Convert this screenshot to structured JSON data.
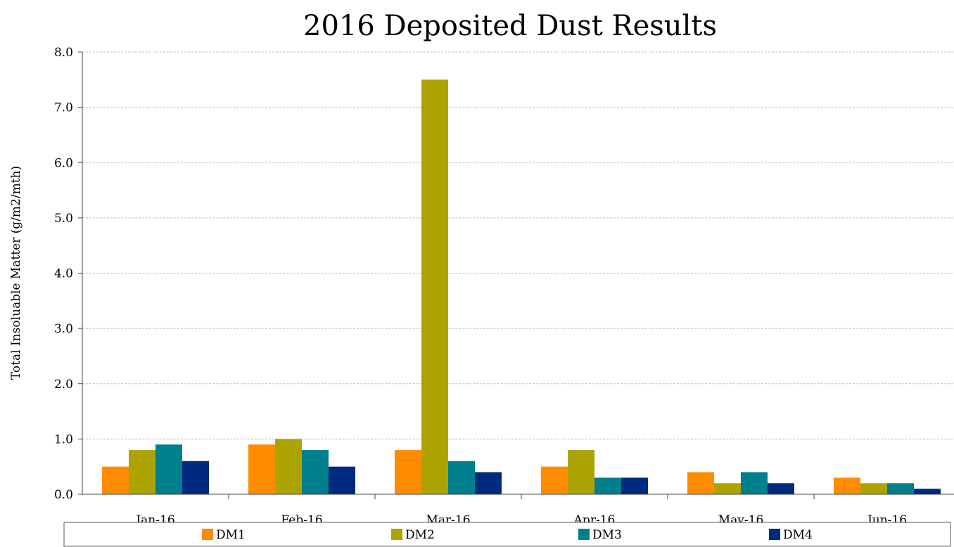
{
  "chart_data": {
    "type": "bar",
    "title": "2016 Deposited Dust Results",
    "xlabel": "",
    "ylabel": "Total Insoluable Matter (g/m2/mth)",
    "categories": [
      "Jan-16",
      "Feb-16",
      "Mar-16",
      "Apr-16",
      "May-16",
      "Jun-16"
    ],
    "yticks": [
      "0.0",
      "1.0",
      "2.0",
      "3.0",
      "4.0",
      "5.0",
      "6.0",
      "7.0",
      "8.0"
    ],
    "ylim": [
      0,
      8
    ],
    "grid": true,
    "legend_position": "bottom",
    "series": [
      {
        "name": "DM1",
        "color": "#FF8C00",
        "values": [
          0.5,
          0.9,
          0.8,
          0.5,
          0.4,
          0.3
        ]
      },
      {
        "name": "DM2",
        "color": "#ADA300",
        "values": [
          0.8,
          1.0,
          7.5,
          0.8,
          0.2,
          0.2
        ]
      },
      {
        "name": "DM3",
        "color": "#007F8C",
        "values": [
          0.9,
          0.8,
          0.6,
          0.3,
          0.4,
          0.2
        ]
      },
      {
        "name": "DM4",
        "color": "#002A7F",
        "values": [
          0.6,
          0.5,
          0.4,
          0.3,
          0.2,
          0.1
        ]
      }
    ]
  }
}
